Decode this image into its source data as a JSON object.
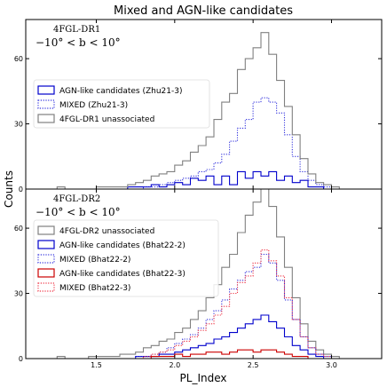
{
  "chart_data": {
    "type": "histogram-step",
    "title": "Mixed and AGN-like candidates",
    "xlabel": "PL_Index",
    "ylabel": "Counts",
    "xlim": [
      1.05,
      3.32
    ],
    "xticks": [
      1.5,
      2.0,
      2.5,
      3.0
    ],
    "xtick_labels": [
      "1.5",
      "2.0",
      "2.5",
      "3.0"
    ],
    "bins": {
      "edges": [
        1.25,
        1.3,
        1.35,
        1.4,
        1.45,
        1.5,
        1.55,
        1.6,
        1.65,
        1.7,
        1.75,
        1.8,
        1.85,
        1.9,
        1.95,
        2.0,
        2.05,
        2.1,
        2.15,
        2.2,
        2.25,
        2.3,
        2.35,
        2.4,
        2.45,
        2.5,
        2.55,
        2.6,
        2.65,
        2.7,
        2.75,
        2.8,
        2.85,
        2.9,
        2.95,
        3.0
      ]
    },
    "panels": [
      {
        "annotation_line1": "4FGL-DR1",
        "annotation_line2": "−10° < b < 10°",
        "ylim": [
          0,
          78
        ],
        "yticks": [
          0,
          30,
          60
        ],
        "ytick_labels": [
          "0",
          "30",
          "60"
        ],
        "legend_position": "center-left",
        "series": [
          {
            "name": "AGN-like candidates (Zhu21-3)",
            "color": "#0000cc",
            "style": "solid",
            "values": [
              0,
              0,
              0,
              0,
              0,
              0,
              0,
              0,
              0,
              1,
              1,
              1,
              2,
              1,
              2,
              3,
              2,
              5,
              4,
              6,
              2,
              6,
              2,
              8,
              5,
              8,
              6,
              8,
              4,
              6,
              3,
              4,
              1,
              1,
              0,
              0
            ]
          },
          {
            "name": "MIXED (Zhu21-3)",
            "color": "#3333dd",
            "style": "dotted",
            "values": [
              0,
              0,
              0,
              0,
              0,
              0,
              0,
              0,
              0,
              0,
              0,
              1,
              1,
              2,
              3,
              4,
              5,
              6,
              8,
              9,
              12,
              16,
              22,
              28,
              32,
              40,
              42,
              40,
              35,
              25,
              15,
              8,
              4,
              2,
              1,
              0
            ]
          },
          {
            "name": "4FGL-DR1 unassociated",
            "color": "#808080",
            "style": "solid",
            "values": [
              1,
              0,
              0,
              0,
              0,
              1,
              1,
              1,
              1,
              2,
              3,
              4,
              6,
              7,
              8,
              11,
              13,
              17,
              20,
              24,
              32,
              40,
              44,
              55,
              60,
              65,
              72,
              62,
              50,
              38,
              25,
              14,
              7,
              3,
              2,
              1
            ]
          }
        ]
      },
      {
        "annotation_line1": "4FGL-DR2",
        "annotation_line2": "−10° < b < 10°",
        "ylim": [
          0,
          78
        ],
        "yticks": [
          0,
          30,
          60
        ],
        "ytick_labels": [
          "0",
          "30",
          "60"
        ],
        "legend_position": "center-left",
        "series": [
          {
            "name": "4FGL-DR2 unassociated",
            "color": "#808080",
            "style": "solid",
            "values": [
              1,
              0,
              0,
              0,
              1,
              1,
              1,
              1,
              2,
              2,
              3,
              5,
              6,
              8,
              9,
              12,
              14,
              18,
              22,
              28,
              34,
              42,
              48,
              58,
              66,
              72,
              78,
              70,
              56,
              42,
              28,
              16,
              8,
              4,
              2,
              1
            ]
          },
          {
            "name": "AGN-like candidates (Bhat22-2)",
            "color": "#0000cc",
            "style": "solid",
            "values": [
              0,
              0,
              0,
              0,
              0,
              0,
              0,
              0,
              0,
              0,
              1,
              1,
              1,
              2,
              2,
              3,
              4,
              5,
              6,
              7,
              9,
              10,
              12,
              14,
              16,
              18,
              20,
              17,
              14,
              10,
              6,
              4,
              2,
              1,
              0,
              0
            ]
          },
          {
            "name": "MIXED (Bhat22-2)",
            "color": "#3333dd",
            "style": "dotted",
            "values": [
              0,
              0,
              0,
              0,
              0,
              0,
              0,
              0,
              0,
              0,
              1,
              1,
              2,
              3,
              5,
              7,
              9,
              11,
              14,
              18,
              22,
              27,
              32,
              36,
              40,
              42,
              48,
              44,
              36,
              27,
              18,
              10,
              5,
              2,
              1,
              0
            ]
          },
          {
            "name": "AGN-like candidates (Bhat22-3)",
            "color": "#cc0000",
            "style": "solid",
            "values": [
              0,
              0,
              0,
              0,
              0,
              0,
              0,
              0,
              0,
              0,
              0,
              0,
              1,
              1,
              1,
              2,
              1,
              2,
              2,
              3,
              3,
              2,
              3,
              4,
              4,
              3,
              4,
              4,
              3,
              2,
              1,
              1,
              0,
              0,
              0,
              0
            ]
          },
          {
            "name": "MIXED (Bhat22-3)",
            "color": "#ee3344",
            "style": "dotted",
            "values": [
              0,
              0,
              0,
              0,
              0,
              0,
              0,
              0,
              0,
              0,
              0,
              1,
              2,
              3,
              4,
              6,
              8,
              10,
              13,
              16,
              20,
              24,
              30,
              35,
              38,
              44,
              50,
              45,
              38,
              28,
              18,
              10,
              5,
              2,
              1,
              0
            ]
          }
        ]
      }
    ]
  }
}
